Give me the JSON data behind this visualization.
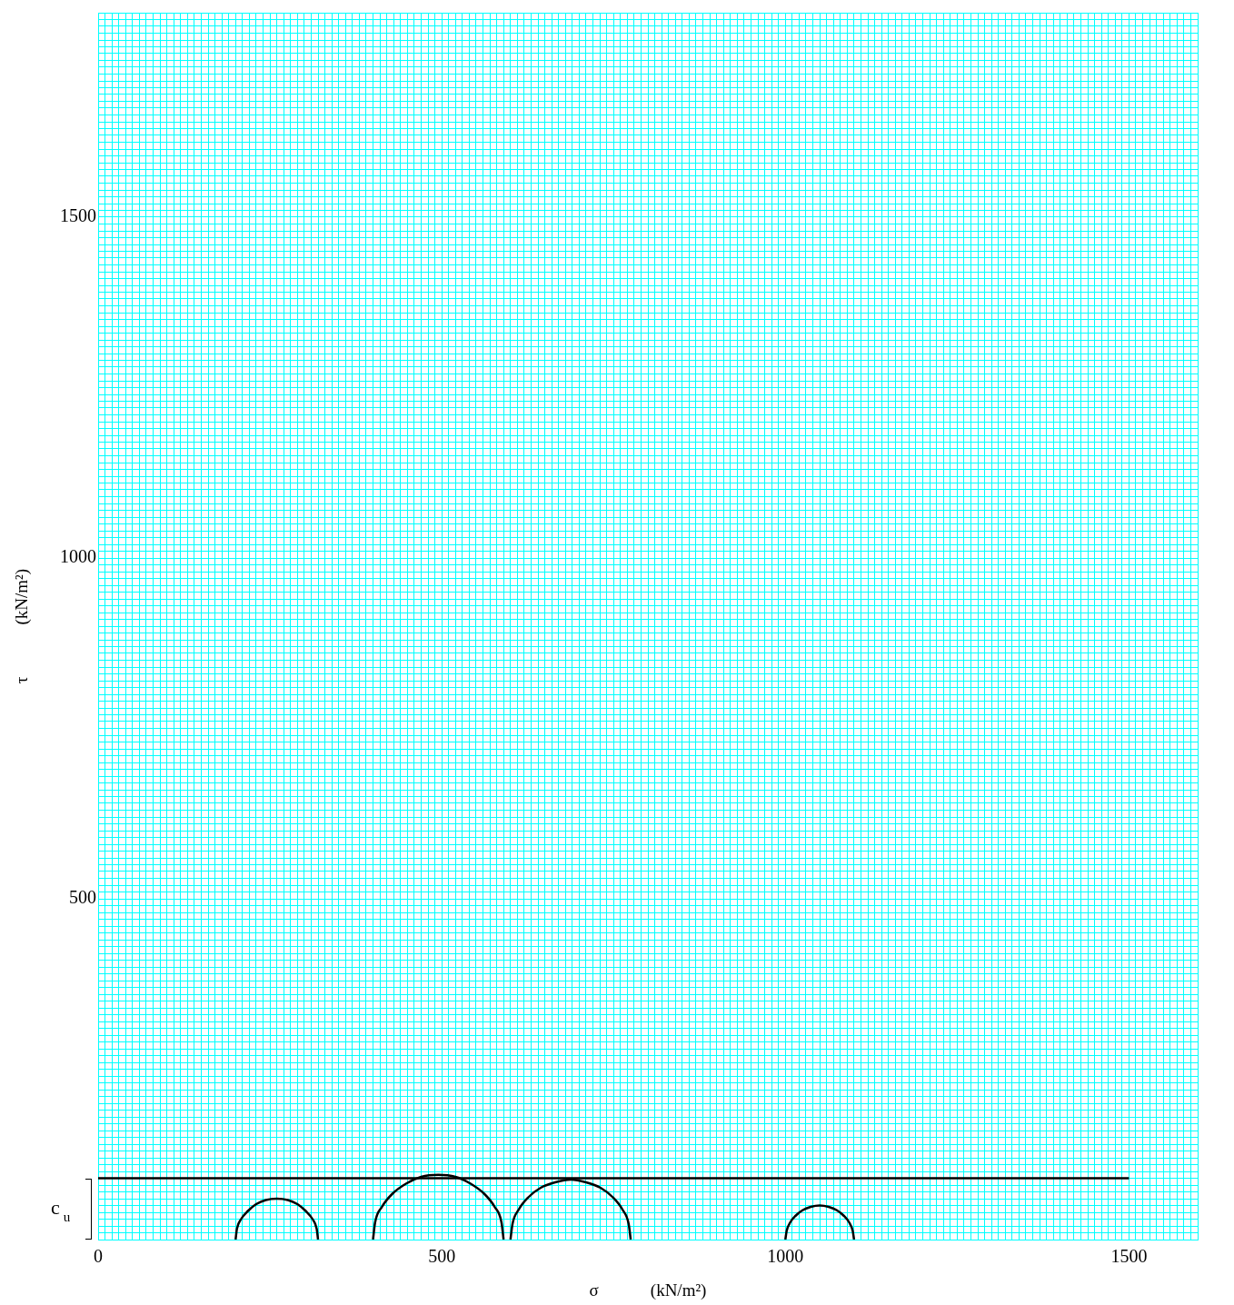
{
  "chart_data": {
    "type": "line",
    "xlabel": "σ　　　(kN/m²)",
    "ylabel": "τ　　　(kN/m²)",
    "annotations": [
      "c$_{u}$"
    ],
    "series": [
      {
        "type": "line",
        "color": "#000000",
        "x": [
          0,
          1500
        ],
        "values": [
          90,
          90
        ]
      },
      {
        "type": "line",
        "color": "#000000",
        "x": [
          200,
          202,
          208,
          218,
          230,
          244,
          260,
          276,
          290,
          302,
          312,
          318,
          320
        ],
        "values": [
          0,
          16,
          30,
          42,
          52,
          58,
          60,
          58,
          52,
          42,
          30,
          16,
          0
        ]
      },
      {
        "type": "line",
        "color": "#000000",
        "x": [
          400,
          403,
          413,
          428,
          448,
          470,
          495,
          520,
          542,
          562,
          577,
          587,
          590
        ],
        "values": [
          0,
          25,
          48,
          67,
          82,
          92,
          95,
          92,
          82,
          67,
          48,
          25,
          0
        ]
      },
      {
        "type": "line",
        "color": "#000000",
        "x": [
          600,
          603,
          612,
          626,
          644,
          665,
          688,
          710,
          731,
          749,
          763,
          772,
          775
        ],
        "values": [
          0,
          23,
          44,
          62,
          76,
          84,
          88,
          84,
          76,
          62,
          44,
          23,
          0
        ]
      },
      {
        "type": "line",
        "color": "#000000",
        "x": [
          1000,
          1002,
          1007,
          1015,
          1025,
          1037,
          1050,
          1063,
          1075,
          1085,
          1093,
          1098,
          1100
        ],
        "values": [
          0,
          13,
          25,
          35,
          43,
          48,
          50,
          48,
          43,
          35,
          25,
          13,
          0
        ]
      }
    ],
    "xlim": [
      0,
      1600
    ],
    "ylim": [
      0,
      1800
    ],
    "xticks": [
      0,
      {
        "value": 10,
        "label": null
      },
      {
        "value": 20,
        "label": null
      },
      {
        "value": 30,
        "label": null
      },
      {
        "value": 40,
        "label": null
      },
      {
        "value": 50,
        "label": null
      },
      {
        "value": 60,
        "label": null
      },
      {
        "value": 70,
        "label": null
      },
      {
        "value": 80,
        "label": null
      },
      {
        "value": 90,
        "label": null
      },
      {
        "value": 100,
        "label": null
      },
      {
        "value": 110,
        "label": null
      },
      {
        "value": 120,
        "label": null
      },
      {
        "value": 130,
        "label": null
      },
      {
        "value": 140,
        "label": null
      },
      {
        "value": 150,
        "label": null
      },
      {
        "value": 160,
        "label": null
      },
      {
        "value": 170,
        "label": null
      },
      {
        "value": 180,
        "label": null
      },
      {
        "value": 190,
        "label": null
      },
      {
        "value": 200,
        "label": null
      },
      {
        "value": 210,
        "label": null
      },
      {
        "value": 220,
        "label": null
      },
      {
        "value": 230,
        "label": null
      },
      {
        "value": 240,
        "label": null
      },
      {
        "value": 250,
        "label": null
      },
      {
        "value": 260,
        "label": null
      },
      {
        "value": 270,
        "label": null
      },
      {
        "value": 280,
        "label": null
      },
      {
        "value": 290,
        "label": null
      },
      {
        "value": 300,
        "label": null
      },
      {
        "value": 310,
        "label": null
      },
      {
        "value": 320,
        "label": null
      },
      {
        "value": 330,
        "label": null
      },
      {
        "value": 340,
        "label": null
      },
      {
        "value": 350,
        "label": null
      },
      {
        "value": 360,
        "label": null
      },
      {
        "value": 370,
        "label": null
      },
      {
        "value": 380,
        "label": null
      },
      {
        "value": 390,
        "label": null
      },
      {
        "value": 400,
        "label": null
      },
      {
        "value": 410,
        "label": null
      },
      {
        "value": 420,
        "label": null
      },
      {
        "value": 430,
        "label": null
      },
      {
        "value": 440,
        "label": null
      },
      {
        "value": 450,
        "label": null
      },
      {
        "value": 460,
        "label": null
      },
      {
        "value": 470,
        "label": null
      },
      {
        "value": 480,
        "label": null
      },
      {
        "value": 490,
        "label": null
      },
      500,
      {
        "value": 510,
        "label": null
      },
      {
        "value": 520,
        "label": null
      },
      {
        "value": 530,
        "label": null
      },
      {
        "value": 540,
        "label": null
      },
      {
        "value": 550,
        "label": null
      },
      {
        "value": 560,
        "label": null
      },
      {
        "value": 570,
        "label": null
      },
      {
        "value": 580,
        "label": null
      },
      {
        "value": 590,
        "label": null
      },
      {
        "value": 600,
        "label": null
      },
      {
        "value": 610,
        "label": null
      },
      {
        "value": 620,
        "label": null
      },
      {
        "value": 630,
        "label": null
      },
      {
        "value": 640,
        "label": null
      },
      {
        "value": 650,
        "label": null
      },
      {
        "value": 660,
        "label": null
      },
      {
        "value": 670,
        "label": null
      },
      {
        "value": 680,
        "label": null
      },
      {
        "value": 690,
        "label": null
      },
      {
        "value": 700,
        "label": null
      },
      {
        "value": 710,
        "label": null
      },
      {
        "value": 720,
        "label": null
      },
      {
        "value": 730,
        "label": null
      },
      {
        "value": 740,
        "label": null
      },
      {
        "value": 750,
        "label": null
      },
      {
        "value": 760,
        "label": null
      },
      {
        "value": 770,
        "label": null
      },
      {
        "value": 780,
        "label": null
      },
      {
        "value": 790,
        "label": null
      },
      {
        "value": 800,
        "label": null
      },
      {
        "value": 810,
        "label": null
      },
      {
        "value": 820,
        "label": null
      },
      {
        "value": 830,
        "label": null
      },
      {
        "value": 840,
        "label": null
      },
      {
        "value": 850,
        "label": null
      },
      {
        "value": 860,
        "label": null
      },
      {
        "value": 870,
        "label": null
      },
      {
        "value": 880,
        "label": null
      },
      {
        "value": 890,
        "label": null
      },
      {
        "value": 900,
        "label": null
      },
      {
        "value": 910,
        "label": null
      },
      {
        "value": 920,
        "label": null
      },
      {
        "value": 930,
        "label": null
      },
      {
        "value": 940,
        "label": null
      },
      {
        "value": 950,
        "label": null
      },
      {
        "value": 960,
        "label": null
      },
      {
        "value": 970,
        "label": null
      },
      {
        "value": 980,
        "label": null
      },
      {
        "value": 990,
        "label": null
      },
      1000,
      {
        "value": 1010,
        "label": null
      },
      {
        "value": 1020,
        "label": null
      },
      {
        "value": 1030,
        "label": null
      },
      {
        "value": 1040,
        "label": null
      },
      {
        "value": 1050,
        "label": null
      },
      {
        "value": 1060,
        "label": null
      },
      {
        "value": 1070,
        "label": null
      },
      {
        "value": 1080,
        "label": null
      },
      {
        "value": 1090,
        "label": null
      },
      {
        "value": 1100,
        "label": null
      },
      {
        "value": 1110,
        "label": null
      },
      {
        "value": 1120,
        "label": null
      },
      {
        "value": 1130,
        "label": null
      },
      {
        "value": 1140,
        "label": null
      },
      {
        "value": 1150,
        "label": null
      },
      {
        "value": 1160,
        "label": null
      },
      {
        "value": 1170,
        "label": null
      },
      {
        "value": 1180,
        "label": null
      },
      {
        "value": 1190,
        "label": null
      },
      {
        "value": 1200,
        "label": null
      },
      {
        "value": 1210,
        "label": null
      },
      {
        "value": 1220,
        "label": null
      },
      {
        "value": 1230,
        "label": null
      },
      {
        "value": 1240,
        "label": null
      },
      {
        "value": 1250,
        "label": null
      },
      {
        "value": 1260,
        "label": null
      },
      {
        "value": 1270,
        "label": null
      },
      {
        "value": 1280,
        "label": null
      },
      {
        "value": 1290,
        "label": null
      },
      {
        "value": 1300,
        "label": null
      },
      {
        "value": 1310,
        "label": null
      },
      {
        "value": 1320,
        "label": null
      },
      {
        "value": 1330,
        "label": null
      },
      {
        "value": 1340,
        "label": null
      },
      {
        "value": 1350,
        "label": null
      },
      {
        "value": 1360,
        "label": null
      },
      {
        "value": 1370,
        "label": null
      },
      {
        "value": 1380,
        "label": null
      },
      {
        "value": 1390,
        "label": null
      },
      {
        "value": 1400,
        "label": null
      },
      {
        "value": 1410,
        "label": null
      },
      {
        "value": 1420,
        "label": null
      },
      {
        "value": 1430,
        "label": null
      },
      {
        "value": 1440,
        "label": null
      },
      {
        "value": 1450,
        "label": null
      },
      {
        "value": 1460,
        "label": null
      },
      {
        "value": 1470,
        "label": null
      },
      {
        "value": 1480,
        "label": null
      },
      {
        "value": 1490,
        "label": null
      },
      1500,
      {
        "value": 1510,
        "label": null
      },
      {
        "value": 1520,
        "label": null
      },
      {
        "value": 1530,
        "label": null
      },
      {
        "value": 1540,
        "label": null
      },
      {
        "value": 1550,
        "label": null
      },
      {
        "value": 1560,
        "label": null
      },
      {
        "value": 1570,
        "label": null
      },
      {
        "value": 1580,
        "label": null
      },
      {
        "value": 1590,
        "label": null
      },
      {
        "value": 1600,
        "label": null
      }
    ],
    "yticks": [
      {
        "value": 0,
        "label": null
      },
      {
        "value": 10,
        "label": null
      },
      {
        "value": 20,
        "label": null
      },
      {
        "value": 30,
        "label": null
      },
      {
        "value": 40,
        "label": null
      },
      {
        "value": 50,
        "label": null
      },
      {
        "value": 60,
        "label": null
      },
      {
        "value": 70,
        "label": null
      },
      {
        "value": 80,
        "label": null
      },
      {
        "value": 90,
        "label": null
      },
      {
        "value": 100,
        "label": null
      },
      {
        "value": 110,
        "label": null
      },
      {
        "value": 120,
        "label": null
      },
      {
        "value": 130,
        "label": null
      },
      {
        "value": 140,
        "label": null
      },
      {
        "value": 150,
        "label": null
      },
      {
        "value": 160,
        "label": null
      },
      {
        "value": 170,
        "label": null
      },
      {
        "value": 180,
        "label": null
      },
      {
        "value": 190,
        "label": null
      },
      {
        "value": 200,
        "label": null
      },
      {
        "value": 210,
        "label": null
      },
      {
        "value": 220,
        "label": null
      },
      {
        "value": 230,
        "label": null
      },
      {
        "value": 240,
        "label": null
      },
      {
        "value": 250,
        "label": null
      },
      {
        "value": 260,
        "label": null
      },
      {
        "value": 270,
        "label": null
      },
      {
        "value": 280,
        "label": null
      },
      {
        "value": 290,
        "label": null
      },
      {
        "value": 300,
        "label": null
      },
      {
        "value": 310,
        "label": null
      },
      {
        "value": 320,
        "label": null
      },
      {
        "value": 330,
        "label": null
      },
      {
        "value": 340,
        "label": null
      },
      {
        "value": 350,
        "label": null
      },
      {
        "value": 360,
        "label": null
      },
      {
        "value": 370,
        "label": null
      },
      {
        "value": 380,
        "label": null
      },
      {
        "value": 390,
        "label": null
      },
      {
        "value": 400,
        "label": null
      },
      {
        "value": 410,
        "label": null
      },
      {
        "value": 420,
        "label": null
      },
      {
        "value": 430,
        "label": null
      },
      {
        "value": 440,
        "label": null
      },
      {
        "value": 450,
        "label": null
      },
      {
        "value": 460,
        "label": null
      },
      {
        "value": 470,
        "label": null
      },
      {
        "value": 480,
        "label": null
      },
      {
        "value": 490,
        "label": null
      },
      500,
      {
        "value": 510,
        "label": null
      },
      {
        "value": 520,
        "label": null
      },
      {
        "value": 530,
        "label": null
      },
      {
        "value": 540,
        "label": null
      },
      {
        "value": 550,
        "label": null
      },
      {
        "value": 560,
        "label": null
      },
      {
        "value": 570,
        "label": null
      },
      {
        "value": 580,
        "label": null
      },
      {
        "value": 590,
        "label": null
      },
      {
        "value": 600,
        "label": null
      },
      {
        "value": 610,
        "label": null
      },
      {
        "value": 620,
        "label": null
      },
      {
        "value": 630,
        "label": null
      },
      {
        "value": 640,
        "label": null
      },
      {
        "value": 650,
        "label": null
      },
      {
        "value": 660,
        "label": null
      },
      {
        "value": 670,
        "label": null
      },
      {
        "value": 680,
        "label": null
      },
      {
        "value": 690,
        "label": null
      },
      {
        "value": 700,
        "label": null
      },
      {
        "value": 710,
        "label": null
      },
      {
        "value": 720,
        "label": null
      },
      {
        "value": 730,
        "label": null
      },
      {
        "value": 740,
        "label": null
      },
      {
        "value": 750,
        "label": null
      },
      {
        "value": 760,
        "label": null
      },
      {
        "value": 770,
        "label": null
      },
      {
        "value": 780,
        "label": null
      },
      {
        "value": 790,
        "label": null
      },
      {
        "value": 800,
        "label": null
      },
      {
        "value": 810,
        "label": null
      },
      {
        "value": 820,
        "label": null
      },
      {
        "value": 830,
        "label": null
      },
      {
        "value": 840,
        "label": null
      },
      {
        "value": 850,
        "label": null
      },
      {
        "value": 860,
        "label": null
      },
      {
        "value": 870,
        "label": null
      },
      {
        "value": 880,
        "label": null
      },
      {
        "value": 890,
        "label": null
      },
      {
        "value": 900,
        "label": null
      },
      {
        "value": 910,
        "label": null
      },
      {
        "value": 920,
        "label": null
      },
      {
        "value": 930,
        "label": null
      },
      {
        "value": 940,
        "label": null
      },
      {
        "value": 950,
        "label": null
      },
      {
        "value": 960,
        "label": null
      },
      {
        "value": 970,
        "label": null
      },
      {
        "value": 980,
        "label": null
      },
      {
        "value": 990,
        "label": null
      },
      1000,
      {
        "value": 1010,
        "label": null
      },
      {
        "value": 1020,
        "label": null
      },
      {
        "value": 1030,
        "label": null
      },
      {
        "value": 1040,
        "label": null
      },
      {
        "value": 1050,
        "label": null
      },
      {
        "value": 1060,
        "label": null
      },
      {
        "value": 1070,
        "label": null
      },
      {
        "value": 1080,
        "label": null
      },
      {
        "value": 1090,
        "label": null
      },
      {
        "value": 1100,
        "label": null
      },
      {
        "value": 1110,
        "label": null
      },
      {
        "value": 1120,
        "label": null
      },
      {
        "value": 1130,
        "label": null
      },
      {
        "value": 1140,
        "label": null
      },
      {
        "value": 1150,
        "label": null
      },
      {
        "value": 1160,
        "label": null
      },
      {
        "value": 1170,
        "label": null
      },
      {
        "value": 1180,
        "label": null
      },
      {
        "value": 1190,
        "label": null
      },
      {
        "value": 1200,
        "label": null
      },
      {
        "value": 1210,
        "label": null
      },
      {
        "value": 1220,
        "label": null
      },
      {
        "value": 1230,
        "label": null
      },
      {
        "value": 1240,
        "label": null
      },
      {
        "value": 1250,
        "label": null
      },
      {
        "value": 1260,
        "label": null
      },
      {
        "value": 1270,
        "label": null
      },
      {
        "value": 1280,
        "label": null
      },
      {
        "value": 1290,
        "label": null
      },
      {
        "value": 1300,
        "label": null
      },
      {
        "value": 1310,
        "label": null
      },
      {
        "value": 1320,
        "label": null
      },
      {
        "value": 1330,
        "label": null
      },
      {
        "value": 1340,
        "label": null
      },
      {
        "value": 1350,
        "label": null
      },
      {
        "value": 1360,
        "label": null
      },
      {
        "value": 1370,
        "label": null
      },
      {
        "value": 1380,
        "label": null
      },
      {
        "value": 1390,
        "label": null
      },
      {
        "value": 1400,
        "label": null
      },
      {
        "value": 1410,
        "label": null
      },
      {
        "value": 1420,
        "label": null
      },
      {
        "value": 1430,
        "label": null
      },
      {
        "value": 1440,
        "label": null
      },
      {
        "value": 1450,
        "label": null
      },
      {
        "value": 1460,
        "label": null
      },
      {
        "value": 1470,
        "label": null
      },
      {
        "value": 1480,
        "label": null
      },
      {
        "value": 1490,
        "label": null
      },
      1500,
      {
        "value": 1510,
        "label": null
      },
      {
        "value": 1520,
        "label": null
      },
      {
        "value": 1530,
        "label": null
      },
      {
        "value": 1540,
        "label": null
      },
      {
        "value": 1550,
        "label": null
      },
      {
        "value": 1560,
        "label": null
      },
      {
        "value": 1570,
        "label": null
      },
      {
        "value": 1580,
        "label": null
      },
      {
        "value": 1590,
        "label": null
      },
      {
        "value": 1600,
        "label": null
      },
      {
        "value": 1610,
        "label": null
      },
      {
        "value": 1620,
        "label": null
      },
      {
        "value": 1630,
        "label": null
      },
      {
        "value": 1640,
        "label": null
      },
      {
        "value": 1650,
        "label": null
      },
      {
        "value": 1660,
        "label": null
      },
      {
        "value": 1670,
        "label": null
      },
      {
        "value": 1680,
        "label": null
      },
      {
        "value": 1690,
        "label": null
      },
      {
        "value": 1700,
        "label": null
      },
      {
        "value": 1710,
        "label": null
      },
      {
        "value": 1720,
        "label": null
      },
      {
        "value": 1730,
        "label": null
      },
      {
        "value": 1740,
        "label": null
      },
      {
        "value": 1750,
        "label": null
      },
      {
        "value": 1760,
        "label": null
      },
      {
        "value": 1770,
        "label": null
      },
      {
        "value": 1780,
        "label": null
      },
      {
        "value": 1790,
        "label": null
      },
      {
        "value": 1800,
        "label": null
      }
    ],
    "grid": true,
    "legend": false,
    "marker": "none",
    "line_style": "solid"
  }
}
